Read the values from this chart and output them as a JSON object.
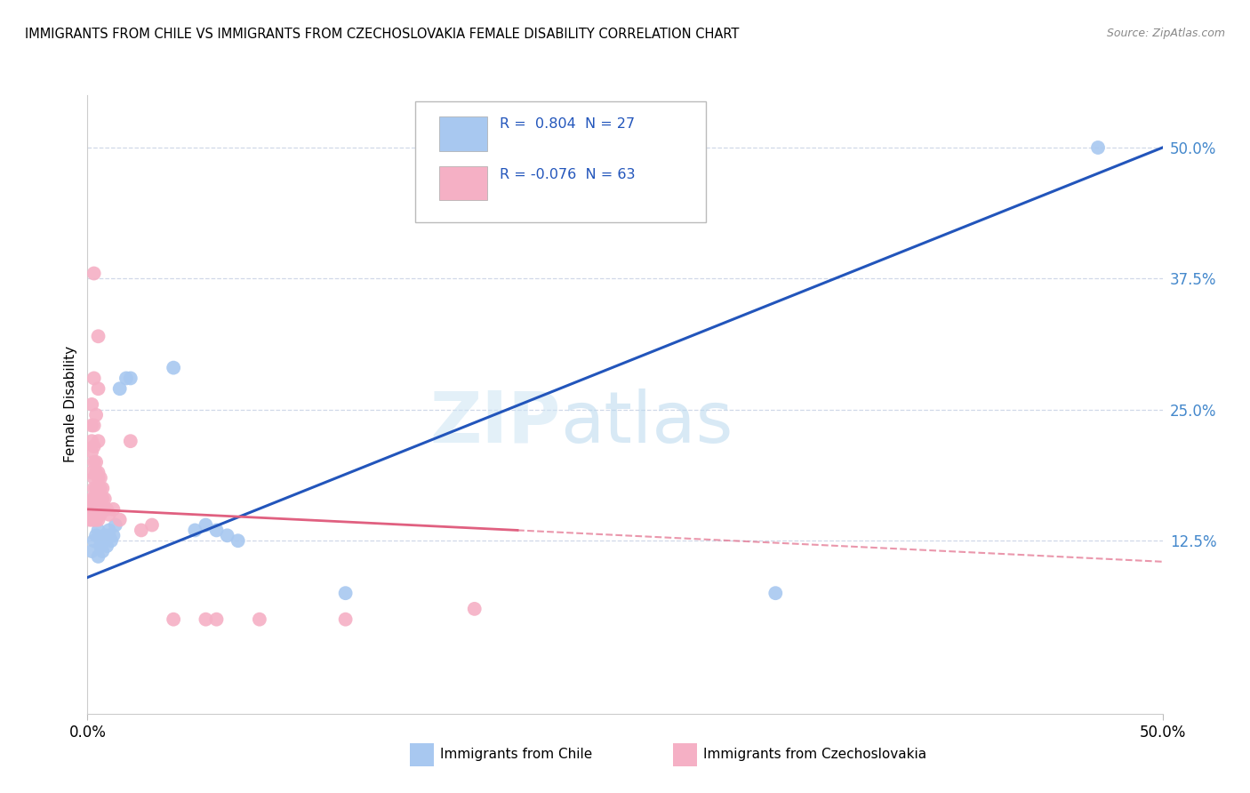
{
  "title": "IMMIGRANTS FROM CHILE VS IMMIGRANTS FROM CZECHOSLOVAKIA FEMALE DISABILITY CORRELATION CHART",
  "source": "Source: ZipAtlas.com",
  "ylabel": "Female Disability",
  "ytick_values": [
    0.0,
    0.125,
    0.25,
    0.375,
    0.5
  ],
  "ytick_labels": [
    "",
    "12.5%",
    "25.0%",
    "37.5%",
    "50.0%"
  ],
  "xlim": [
    0.0,
    0.5
  ],
  "ylim": [
    -0.04,
    0.55
  ],
  "chile_color": "#a8c8f0",
  "czech_color": "#f5b0c5",
  "chile_line_color": "#2255bb",
  "czech_line_color": "#e06080",
  "chile_scatter": [
    [
      0.002,
      0.115
    ],
    [
      0.003,
      0.125
    ],
    [
      0.004,
      0.13
    ],
    [
      0.005,
      0.11
    ],
    [
      0.005,
      0.135
    ],
    [
      0.006,
      0.12
    ],
    [
      0.007,
      0.115
    ],
    [
      0.008,
      0.125
    ],
    [
      0.008,
      0.13
    ],
    [
      0.009,
      0.12
    ],
    [
      0.01,
      0.13
    ],
    [
      0.01,
      0.135
    ],
    [
      0.011,
      0.125
    ],
    [
      0.012,
      0.13
    ],
    [
      0.013,
      0.14
    ],
    [
      0.015,
      0.27
    ],
    [
      0.018,
      0.28
    ],
    [
      0.02,
      0.28
    ],
    [
      0.04,
      0.29
    ],
    [
      0.05,
      0.135
    ],
    [
      0.055,
      0.14
    ],
    [
      0.06,
      0.135
    ],
    [
      0.065,
      0.13
    ],
    [
      0.07,
      0.125
    ],
    [
      0.12,
      0.075
    ],
    [
      0.32,
      0.075
    ],
    [
      0.47,
      0.5
    ]
  ],
  "czech_scatter": [
    [
      0.001,
      0.145
    ],
    [
      0.001,
      0.155
    ],
    [
      0.001,
      0.16
    ],
    [
      0.002,
      0.145
    ],
    [
      0.002,
      0.155
    ],
    [
      0.002,
      0.16
    ],
    [
      0.002,
      0.165
    ],
    [
      0.002,
      0.19
    ],
    [
      0.002,
      0.21
    ],
    [
      0.002,
      0.22
    ],
    [
      0.002,
      0.235
    ],
    [
      0.002,
      0.255
    ],
    [
      0.003,
      0.145
    ],
    [
      0.003,
      0.15
    ],
    [
      0.003,
      0.155
    ],
    [
      0.003,
      0.16
    ],
    [
      0.003,
      0.165
    ],
    [
      0.003,
      0.175
    ],
    [
      0.003,
      0.185
    ],
    [
      0.003,
      0.2
    ],
    [
      0.003,
      0.215
    ],
    [
      0.003,
      0.235
    ],
    [
      0.003,
      0.28
    ],
    [
      0.003,
      0.38
    ],
    [
      0.004,
      0.145
    ],
    [
      0.004,
      0.155
    ],
    [
      0.004,
      0.16
    ],
    [
      0.004,
      0.165
    ],
    [
      0.004,
      0.175
    ],
    [
      0.004,
      0.19
    ],
    [
      0.004,
      0.2
    ],
    [
      0.004,
      0.245
    ],
    [
      0.005,
      0.145
    ],
    [
      0.005,
      0.155
    ],
    [
      0.005,
      0.16
    ],
    [
      0.005,
      0.175
    ],
    [
      0.005,
      0.185
    ],
    [
      0.005,
      0.19
    ],
    [
      0.005,
      0.22
    ],
    [
      0.005,
      0.27
    ],
    [
      0.005,
      0.32
    ],
    [
      0.006,
      0.15
    ],
    [
      0.006,
      0.16
    ],
    [
      0.006,
      0.175
    ],
    [
      0.006,
      0.185
    ],
    [
      0.007,
      0.155
    ],
    [
      0.007,
      0.165
    ],
    [
      0.007,
      0.175
    ],
    [
      0.008,
      0.155
    ],
    [
      0.008,
      0.165
    ],
    [
      0.009,
      0.155
    ],
    [
      0.01,
      0.15
    ],
    [
      0.012,
      0.155
    ],
    [
      0.015,
      0.145
    ],
    [
      0.02,
      0.22
    ],
    [
      0.025,
      0.135
    ],
    [
      0.03,
      0.14
    ],
    [
      0.04,
      0.05
    ],
    [
      0.055,
      0.05
    ],
    [
      0.06,
      0.05
    ],
    [
      0.08,
      0.05
    ],
    [
      0.12,
      0.05
    ],
    [
      0.18,
      0.06
    ]
  ],
  "chile_line": {
    "x0": 0.0,
    "y0": 0.09,
    "x1": 0.5,
    "y1": 0.5
  },
  "czech_line_solid": {
    "x0": 0.0,
    "y0": 0.155,
    "x1": 0.2,
    "y1": 0.135
  },
  "czech_line_dash": {
    "x0": 0.2,
    "y0": 0.135,
    "x1": 0.5,
    "y1": 0.105
  }
}
